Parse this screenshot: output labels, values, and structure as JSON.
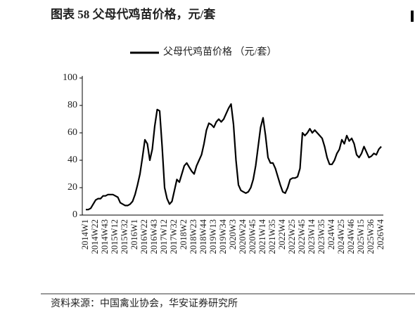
{
  "chart_data": {
    "type": "line",
    "title": "图表 58 父母代鸡苗价格，元/套",
    "source": "资料来源：中国禽业协会，华安证券研究所",
    "categories": [
      "2014W1",
      null,
      null,
      null,
      "2014W22",
      null,
      null,
      null,
      "2014W43",
      null,
      null,
      null,
      "2015W12",
      null,
      null,
      null,
      "2015W32",
      null,
      null,
      null,
      "2016W1",
      null,
      null,
      null,
      "2016W22",
      null,
      null,
      null,
      "2016W43",
      null,
      null,
      null,
      "2017W12",
      null,
      null,
      null,
      "2017W32",
      null,
      null,
      null,
      "2018W2",
      null,
      null,
      null,
      "2018W23",
      null,
      null,
      null,
      "2018W44",
      null,
      null,
      null,
      "2019W13",
      null,
      null,
      null,
      "2019W34",
      null,
      null,
      null,
      "2020W3",
      null,
      null,
      null,
      "2020W24",
      null,
      null,
      null,
      "2020W45",
      null,
      null,
      null,
      "2021W14",
      null,
      null,
      null,
      "2021W35",
      null,
      null,
      null,
      "2022W4",
      null,
      null,
      null,
      "2022W25",
      null,
      null,
      null,
      "2022W45",
      null,
      null,
      null,
      "2023W14",
      null,
      null,
      null,
      "2023W35",
      null,
      null,
      null,
      "2024W4",
      null,
      null,
      null,
      "2024W25",
      null,
      null,
      null,
      "2024W46",
      null,
      null,
      null,
      "2025W15",
      null,
      null,
      null,
      "2025W36",
      null,
      null,
      null,
      "2026W4"
    ],
    "series": [
      {
        "name": "父母代鸡苗价格 （元/套）",
        "color": "#000000",
        "values": [
          4,
          4,
          5,
          8,
          11,
          12,
          12,
          14,
          14,
          15,
          15,
          15,
          14,
          13,
          9,
          8,
          7,
          7,
          8,
          10,
          15,
          22,
          30,
          42,
          55,
          52,
          40,
          48,
          65,
          77,
          76,
          50,
          20,
          12,
          8,
          10,
          18,
          26,
          24,
          30,
          36,
          38,
          35,
          32,
          30,
          36,
          40,
          44,
          52,
          62,
          67,
          66,
          64,
          68,
          70,
          68,
          70,
          74,
          78,
          81,
          66,
          40,
          22,
          18,
          17,
          16,
          17,
          20,
          26,
          36,
          50,
          64,
          71,
          58,
          42,
          38,
          38,
          34,
          28,
          22,
          17,
          16,
          20,
          26,
          27,
          27,
          28,
          34,
          60,
          58,
          60,
          63,
          60,
          62,
          60,
          58,
          56,
          50,
          42,
          37,
          37,
          40,
          45,
          48,
          55,
          52,
          58,
          54,
          56,
          52,
          44,
          42,
          45,
          50,
          46,
          42,
          43,
          45,
          44,
          48,
          50
        ]
      }
    ],
    "ylim": [
      0,
      100
    ],
    "yticks": [
      0,
      20,
      40,
      60,
      80,
      100
    ],
    "grid": false
  }
}
